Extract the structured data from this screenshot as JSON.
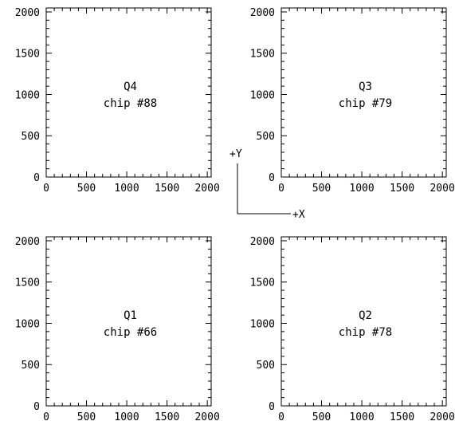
{
  "layout_diagram": {
    "axis_range": [
      0,
      2048
    ],
    "tick_values": [
      0,
      500,
      1000,
      1500,
      2000
    ],
    "tick_labels": [
      "0",
      "500",
      "1000",
      "1500",
      "2000"
    ],
    "quadrants": [
      {
        "id": "q4",
        "position": "top-left",
        "name": "Q4",
        "chip": "chip #88"
      },
      {
        "id": "q3",
        "position": "top-right",
        "name": "Q3",
        "chip": "chip #79"
      },
      {
        "id": "q1",
        "position": "bottom-left",
        "name": "Q1",
        "chip": "chip #66"
      },
      {
        "id": "q2",
        "position": "bottom-right",
        "name": "Q2",
        "chip": "chip #78"
      }
    ],
    "orientation": {
      "y_label": "+Y",
      "x_label": "+X"
    }
  }
}
